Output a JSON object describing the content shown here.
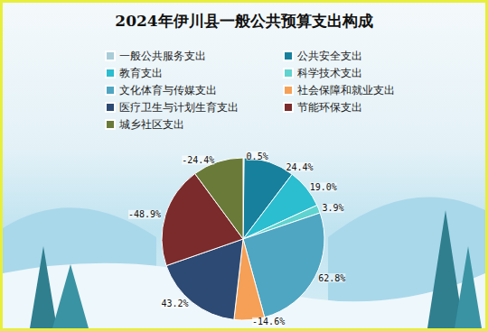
{
  "chart_data": {
    "type": "pie",
    "title": "2024年伊川县一般公共预算支出构成",
    "categories": [
      "一般公共服务支出",
      "公共安全支出",
      "教育支出",
      "科学技术支出",
      "文化体育与传媒支出",
      "社会保障和就业支出",
      "医疗卫生与计划生育支出",
      "节能环保支出",
      "城乡社区支出"
    ],
    "values": [
      0.5,
      24.4,
      19.0,
      3.9,
      62.8,
      -14.6,
      43.2,
      -48.9,
      -24.4
    ],
    "value_labels": [
      "0.5%",
      "24.4%",
      "19.0%",
      "3.9%",
      "62.8%",
      "-14.6%",
      "43.2%",
      "-48.9%",
      "-24.4%"
    ],
    "colors": [
      "#a8ccd8",
      "#17809d",
      "#2bbdd0",
      "#5fd3cf",
      "#4ea6c2",
      "#f5a056",
      "#2c4a73",
      "#7b2b2b",
      "#6a7a38"
    ],
    "data_labels": true,
    "legend": "top"
  }
}
